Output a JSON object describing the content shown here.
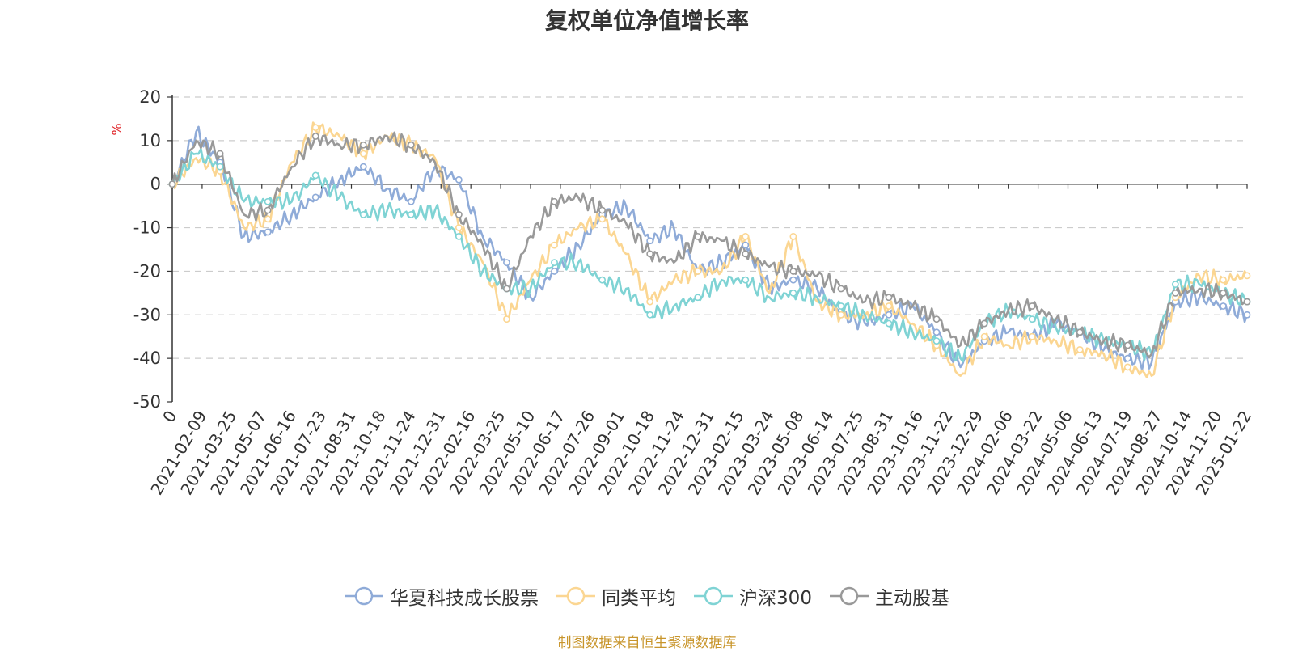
{
  "colors": {
    "华夏科技成长股票": "#8fabd8",
    "同类平均": "#fbd692",
    "沪深300": "#7fd3d4",
    "主动股基": "#999999",
    "ylabel": "#e0262a",
    "source": "#c8952b"
  },
  "source_note": "制图数据来自恒生聚源数据库",
  "chart_data": {
    "type": "line",
    "title": "复权单位净值增长率",
    "ylabel": "%",
    "xlabel": "",
    "ylim": [
      -50,
      20
    ],
    "yticks": [
      20,
      10,
      0,
      -10,
      -20,
      -30,
      -40,
      -50
    ],
    "grid": true,
    "legend_position": "bottom",
    "x_ticks": [
      "0",
      "2021-02-09",
      "2021-03-25",
      "2021-05-07",
      "2021-06-16",
      "2021-07-23",
      "2021-08-31",
      "2021-10-18",
      "2021-11-24",
      "2021-12-31",
      "2022-02-16",
      "2022-03-25",
      "2022-05-10",
      "2022-06-17",
      "2022-07-26",
      "2022-09-01",
      "2022-10-18",
      "2022-11-24",
      "2022-12-31",
      "2023-02-15",
      "2023-03-24",
      "2023-05-08",
      "2023-06-14",
      "2023-07-25",
      "2023-08-31",
      "2023-10-16",
      "2023-11-22",
      "2023-12-29",
      "2024-02-06",
      "2024-03-22",
      "2024-05-06",
      "2024-06-13",
      "2024-07-19",
      "2024-08-27",
      "2024-10-14",
      "2024-11-20",
      "2025-01-22"
    ],
    "series": [
      {
        "name": "华夏科技成长股票",
        "values": [
          0,
          12,
          5,
          -12,
          -11,
          -7,
          -3,
          1,
          4,
          -1,
          -4,
          4,
          1,
          -12,
          -18,
          -26,
          -20,
          -14,
          -7,
          -5,
          -13,
          -10,
          -20,
          -18,
          -14,
          -24,
          -22,
          -24,
          -30,
          -32,
          -30,
          -28,
          -34,
          -42,
          -36,
          -34,
          -35,
          -32,
          -34,
          -38,
          -40,
          -41,
          -27,
          -26,
          -28,
          -30
        ]
      },
      {
        "name": "同类平均",
        "values": [
          0,
          6,
          3,
          -10,
          -8,
          5,
          13,
          11,
          7,
          11,
          9,
          6,
          -10,
          -18,
          -31,
          -22,
          -14,
          -10,
          -8,
          -16,
          -27,
          -22,
          -20,
          -20,
          -12,
          -25,
          -12,
          -27,
          -30,
          -30,
          -28,
          -32,
          -37,
          -44,
          -35,
          -37,
          -35,
          -36,
          -38,
          -39,
          -42,
          -44,
          -26,
          -21,
          -22,
          -21
        ]
      },
      {
        "name": "沪深300",
        "values": [
          0,
          7,
          4,
          -4,
          -4,
          -4,
          2,
          -3,
          -7,
          -6,
          -7,
          -6,
          -12,
          -20,
          -24,
          -24,
          -18,
          -18,
          -22,
          -24,
          -30,
          -28,
          -26,
          -22,
          -22,
          -26,
          -25,
          -26,
          -28,
          -30,
          -32,
          -34,
          -36,
          -40,
          -32,
          -29,
          -31,
          -33,
          -34,
          -36,
          -37,
          -39,
          -23,
          -23,
          -25,
          -27
        ]
      },
      {
        "name": "主动股基",
        "values": [
          0,
          10,
          7,
          -7,
          -6,
          4,
          11,
          9,
          9,
          11,
          9,
          5,
          -7,
          -14,
          -24,
          -12,
          -4,
          -3,
          -6,
          -9,
          -16,
          -18,
          -12,
          -13,
          -16,
          -19,
          -20,
          -21,
          -24,
          -27,
          -26,
          -28,
          -31,
          -37,
          -32,
          -29,
          -28,
          -31,
          -34,
          -36,
          -37,
          -39,
          -25,
          -24,
          -25,
          -27
        ]
      }
    ]
  }
}
